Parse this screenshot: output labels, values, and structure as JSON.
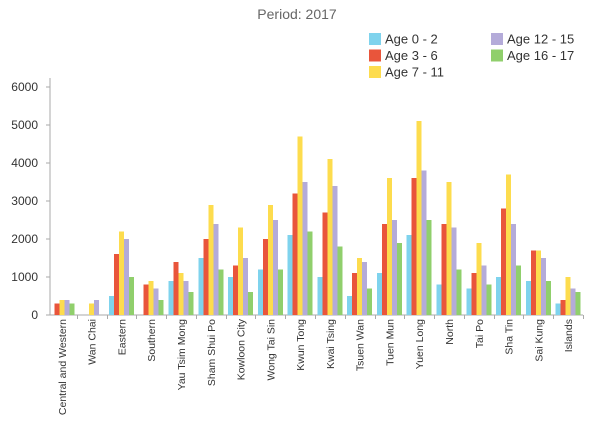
{
  "chart_data": {
    "type": "bar",
    "title": "Period: 2017",
    "ylim": [
      0,
      6000
    ],
    "yticks": [
      0,
      1000,
      2000,
      3000,
      4000,
      5000,
      6000
    ],
    "grid": false,
    "legend_position": "top-right",
    "categories": [
      "Central and Western",
      "Wan Chai",
      "Eastern",
      "Southern",
      "Yau Tsim Mong",
      "Sham Shui Po",
      "Kowloon City",
      "Wong Tai Sin",
      "Kwun Tong",
      "Kwai Tsing",
      "Tsuen Wan",
      "Tuen Mun",
      "Yuen Long",
      "North",
      "Tai Po",
      "Sha Tin",
      "Sai Kung",
      "Islands"
    ],
    "series": [
      {
        "name": "Age 0 - 2",
        "color": "#7fd3ed",
        "values": [
          null,
          null,
          500,
          null,
          900,
          1500,
          1000,
          1200,
          2100,
          1000,
          500,
          1100,
          2100,
          800,
          700,
          1000,
          900,
          300
        ]
      },
      {
        "name": "Age 3 - 6",
        "color": "#e9553b",
        "values": [
          300,
          null,
          1600,
          800,
          1400,
          2000,
          1300,
          2000,
          3200,
          2700,
          1100,
          2400,
          3600,
          2400,
          1100,
          2800,
          1700,
          400
        ]
      },
      {
        "name": "Age 7 - 11",
        "color": "#fddc4e",
        "values": [
          400,
          300,
          2200,
          900,
          1100,
          2900,
          2300,
          2900,
          4700,
          4100,
          1500,
          3600,
          5100,
          3500,
          1900,
          3700,
          1700,
          1000
        ]
      },
      {
        "name": "Age 12 - 15",
        "color": "#b4abd9",
        "values": [
          400,
          400,
          2000,
          700,
          900,
          2400,
          1500,
          2500,
          3500,
          3400,
          1400,
          2500,
          3800,
          2300,
          1300,
          2400,
          1500,
          700
        ]
      },
      {
        "name": "Age 16 - 17",
        "color": "#90cf6c",
        "values": [
          300,
          null,
          1000,
          400,
          600,
          1200,
          600,
          1200,
          2200,
          1800,
          700,
          1900,
          2500,
          1200,
          800,
          1300,
          900,
          600
        ]
      }
    ]
  }
}
